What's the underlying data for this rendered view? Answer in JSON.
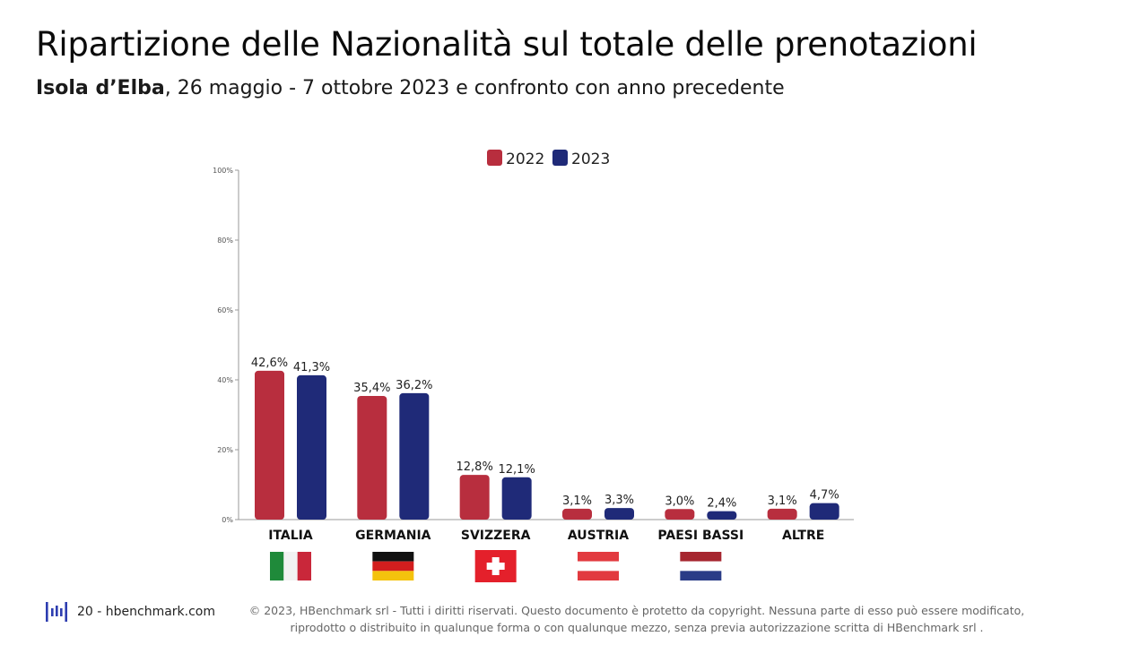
{
  "header": {
    "title": "Ripartizione delle Nazionalità sul totale delle prenotazioni",
    "subtitle_bold": "Isola d’Elba",
    "subtitle_rest": ", 26 maggio - 7 ottobre 2023 e confronto con anno precedente"
  },
  "chart_data": {
    "type": "bar",
    "categories": [
      "ITALIA",
      "GERMANIA",
      "SVIZZERA",
      "AUSTRIA",
      "PAESI BASSI",
      "ALTRE"
    ],
    "series": [
      {
        "name": "2022",
        "color": "#b82e3e",
        "values": [
          42.6,
          35.4,
          12.8,
          3.1,
          3.0,
          3.1
        ],
        "labels": [
          "42,6%",
          "35,4%",
          "12,8%",
          "3,1%",
          "3,0%",
          "3,1%"
        ]
      },
      {
        "name": "2023",
        "color": "#1f2a78",
        "values": [
          41.3,
          36.2,
          12.1,
          3.3,
          2.4,
          4.7
        ],
        "labels": [
          "41,3%",
          "36,2%",
          "12,1%",
          "3,3%",
          "2,4%",
          "4,7%"
        ]
      }
    ],
    "ylim": [
      0,
      100
    ],
    "yticks": [
      0,
      20,
      40,
      60,
      80,
      100
    ],
    "ytick_labels": [
      "0%",
      "20%",
      "40%",
      "60%",
      "80%",
      "100%"
    ],
    "legend_position": "top-center",
    "grid": false,
    "flags": [
      "italy-flag",
      "germany-flag",
      "switzerland-flag",
      "austria-flag",
      "netherlands-flag",
      "none"
    ]
  },
  "footer": {
    "logo_icon": "hbenchmark-logo-icon",
    "page_label": "20 - hbenchmark.com",
    "copyright_line1": "© 2023, HBenchmark srl - Tutti i diritti riservati. Questo documento è protetto da copyright. Nessuna parte di esso può essere modificato,",
    "copyright_line2": "riprodotto o distribuito in qualunque forma o con qualunque mezzo, senza previa autorizzazione scritta di HBenchmark srl ."
  }
}
